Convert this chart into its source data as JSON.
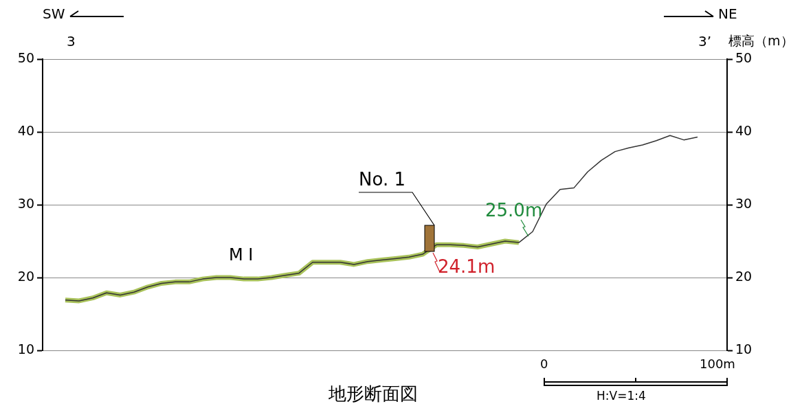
{
  "chart_data": {
    "type": "line",
    "title": "地形断面図",
    "y2label": "標高（m）",
    "categories": [
      null,
      null,
      null,
      null,
      null,
      null,
      null,
      null,
      null,
      null,
      null,
      null,
      null,
      null,
      null,
      null,
      null,
      null,
      null,
      null,
      null,
      null,
      null,
      null,
      null,
      null,
      null,
      null,
      null,
      null,
      null,
      null,
      null,
      null,
      null,
      null,
      null,
      null,
      null,
      null,
      null,
      null,
      null,
      null,
      null,
      null,
      null
    ],
    "series": [
      {
        "color": "#a9c25a",
        "values": [
          16.9,
          16.8,
          17.2,
          17.9,
          17.6,
          18.0,
          18.7,
          19.2,
          19.4,
          19.4,
          19.8,
          20.0,
          20.0,
          19.8,
          19.8,
          20.0,
          20.3,
          20.6,
          22.1,
          22.1,
          22.1,
          21.8,
          22.2,
          22.4,
          22.6,
          22.8,
          23.2,
          24.5,
          24.5,
          24.4,
          24.2,
          24.6,
          25.0,
          24.8,
          null,
          null,
          null,
          null,
          null,
          null,
          null,
          null,
          null,
          null,
          null,
          null,
          null
        ]
      },
      {
        "color": "#333333",
        "values": [
          16.9,
          16.8,
          17.2,
          17.9,
          17.6,
          18.0,
          18.7,
          19.2,
          19.4,
          19.4,
          19.8,
          20.0,
          20.0,
          19.8,
          19.8,
          20.0,
          20.3,
          20.6,
          22.1,
          22.1,
          22.1,
          21.8,
          22.2,
          22.4,
          22.6,
          22.8,
          23.2,
          24.5,
          24.5,
          24.4,
          24.2,
          24.6,
          25.0,
          24.8,
          26.3,
          30.1,
          32.1,
          32.3,
          34.5,
          36.1,
          37.3,
          37.8,
          38.2,
          38.8,
          39.5,
          38.9,
          39.3
        ]
      }
    ],
    "ylim": [
      10,
      50
    ],
    "yticks": [
      10,
      20,
      30,
      40,
      50
    ],
    "y2lim": [
      10,
      50
    ],
    "y2ticks": [
      10,
      20,
      30,
      40,
      50
    ],
    "grid": "y",
    "marker": "none",
    "tick_labels": "y",
    "annotations": [
      "SW",
      "NE",
      "3",
      "3’",
      "M I",
      "No. 1",
      {
        "text": "24.1m",
        "y": 24.1
      },
      {
        "text": "25.0m",
        "y": 25.0
      },
      "0",
      "100m",
      "H:V=1:4"
    ]
  }
}
